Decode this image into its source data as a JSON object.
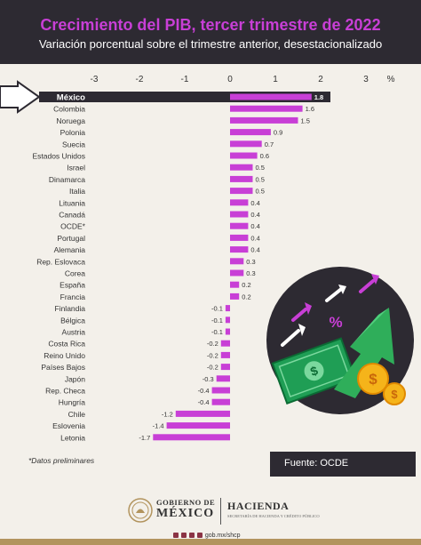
{
  "header": {
    "title": "Crecimiento del PIB, tercer trimestre de 2022",
    "subtitle": "Variación porcentual sobre el trimestre anterior, desestacionalizado"
  },
  "chart_data": {
    "type": "bar",
    "orientation": "horizontal",
    "title": "Crecimiento del PIB, tercer trimestre de 2022",
    "subtitle": "Variación porcentual sobre el trimestre anterior, desestacionalizado",
    "xlabel": "%",
    "xlim": [
      -3,
      3
    ],
    "ticks": [
      -3,
      -2,
      -1,
      0,
      1,
      2,
      3
    ],
    "highlight": "México",
    "categories": [
      "México",
      "Colombia",
      "Noruega",
      "Polonia",
      "Suecia",
      "Estados Unidos",
      "Israel",
      "Dinamarca",
      "Italia",
      "Lituania",
      "Canadá",
      "OCDE*",
      "Portugal",
      "Alemania",
      "Rep. Eslovaca",
      "Corea",
      "España",
      "Francia",
      "Finlandia",
      "Bélgica",
      "Austria",
      "Costa Rica",
      "Reino Unido",
      "Países Bajos",
      "Japón",
      "Rep. Checa",
      "Hungría",
      "Chile",
      "Eslovenia",
      "Letonia"
    ],
    "values": [
      1.8,
      1.6,
      1.5,
      0.9,
      0.7,
      0.6,
      0.5,
      0.5,
      0.5,
      0.4,
      0.4,
      0.4,
      0.4,
      0.4,
      0.3,
      0.3,
      0.2,
      0.2,
      -0.1,
      -0.1,
      -0.1,
      -0.2,
      -0.2,
      -0.2,
      -0.3,
      -0.4,
      -0.4,
      -1.2,
      -1.4,
      -1.7
    ],
    "grid": false,
    "colors": {
      "bar": "#c83fd6",
      "highlight_band": "#2d2a32",
      "text": "#333333"
    }
  },
  "notes": {
    "preliminary": "*Datos preliminares",
    "source": "Fuente: OCDE"
  },
  "footer": {
    "gob_line1": "GOBIERNO DE",
    "gob_line2": "MÉXICO",
    "hacienda": "HACIENDA",
    "hacienda_sub": "SECRETARÍA DE HACIENDA Y CRÉDITO PÚBLICO",
    "handle": "gob.mx/shcp"
  },
  "colors": {
    "header_bg": "#2d2a32",
    "accent": "#c83fd6",
    "page_bg": "#f3f0ea",
    "footer_bar": "#b2945e"
  }
}
